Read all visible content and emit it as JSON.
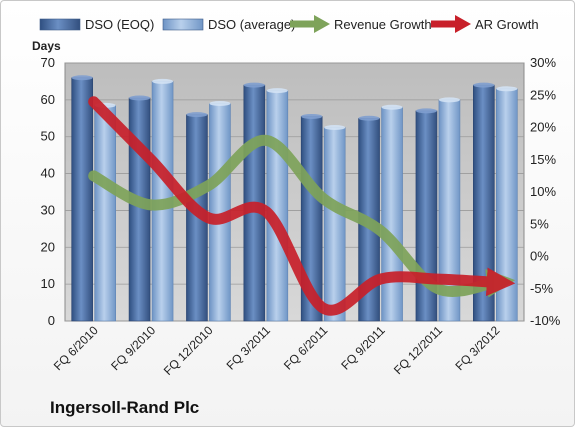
{
  "company": "Ingersoll-Rand Plc",
  "chart_data": {
    "type": "bar",
    "categories": [
      "FQ 6/2010",
      "FQ 9/2010",
      "FQ 12/2010",
      "FQ 3/2011",
      "FQ 6/2011",
      "FQ 9/2011",
      "FQ 12/2011",
      "FQ 3/2012"
    ],
    "series": [
      {
        "name": "DSO (EOQ)",
        "type": "bar",
        "axis": "left",
        "values": [
          66,
          60.5,
          56,
          64,
          55.5,
          55,
          57,
          64
        ]
      },
      {
        "name": "DSO (average)",
        "type": "bar",
        "axis": "left",
        "values": [
          58.5,
          65,
          59,
          62.5,
          52.5,
          58,
          60,
          63
        ]
      },
      {
        "name": "Revenue Growth",
        "type": "line-arrow",
        "axis": "right",
        "values": [
          12.5,
          8,
          11,
          18,
          9,
          4,
          -5,
          -4
        ]
      },
      {
        "name": "AR Growth",
        "type": "line-arrow",
        "axis": "right",
        "values": [
          24,
          15,
          6,
          7,
          -8,
          -3.5,
          -3.5,
          -4
        ]
      }
    ],
    "ylabel": "Days",
    "ylim": [
      0,
      70
    ],
    "yticks": [
      0,
      10,
      20,
      30,
      40,
      50,
      60,
      70
    ],
    "y2lim": [
      -10,
      30
    ],
    "y2ticks": [
      "-10%",
      "-5%",
      "0%",
      "5%",
      "10%",
      "15%",
      "20%",
      "25%",
      "30%"
    ],
    "legend_position": "top",
    "grid": true,
    "colors": {
      "bar_eoq": "#4a6fa5",
      "bar_avg": "#8fb0d8",
      "revenue": "#7ea35a",
      "ar": "#c8202a",
      "plot_bg": "#c9c9c9"
    }
  }
}
